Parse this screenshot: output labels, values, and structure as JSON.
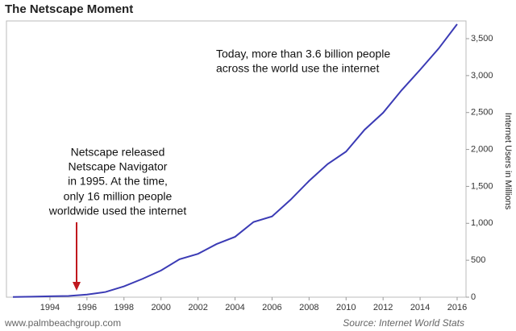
{
  "chart_data": {
    "type": "line",
    "title": "The Netscape Moment",
    "y_label": "Internet Users in Millions",
    "annotation_top": [
      "Today, more than 3.6 billion people",
      "across the world use the internet"
    ],
    "annotation_left": [
      "Netscape released",
      "Netscape Navigator",
      "in 1995. At the time,",
      "only 16 million people",
      "worldwide used the internet"
    ],
    "footer": "www.palmbeachgroup.com",
    "source": "Source: Internet World Stats",
    "x": [
      1992,
      1993,
      1994,
      1995,
      1996,
      1997,
      1998,
      1999,
      2000,
      2001,
      2002,
      2003,
      2004,
      2005,
      2006,
      2007,
      2008,
      2009,
      2010,
      2011,
      2012,
      2013,
      2014,
      2015,
      2016
    ],
    "series": [
      {
        "name": "Internet users",
        "color": "#3b3bb5",
        "values": [
          3,
          7,
          12,
          16,
          36,
          70,
          147,
          248,
          361,
          513,
          587,
          719,
          817,
          1018,
          1093,
          1319,
          1574,
          1802,
          1971,
          2267,
          2497,
          2802,
          3079,
          3366,
          3696
        ]
      }
    ],
    "xlim": [
      1991.65,
      2016.48
    ],
    "xticks": [
      1994,
      1996,
      1998,
      2000,
      2002,
      2004,
      2006,
      2008,
      2010,
      2012,
      2014,
      2016
    ],
    "ylim": [
      0,
      3740
    ],
    "yticks": [
      0,
      500,
      {
        "value": 1000,
        "label": "1,000"
      },
      {
        "value": 1500,
        "label": "1,500"
      },
      {
        "value": 2000,
        "label": "2,000"
      },
      {
        "value": 2500,
        "label": "2,500"
      },
      {
        "value": 3000,
        "label": "3,000"
      },
      {
        "value": 3500,
        "label": "3,500"
      }
    ],
    "grid": false
  }
}
